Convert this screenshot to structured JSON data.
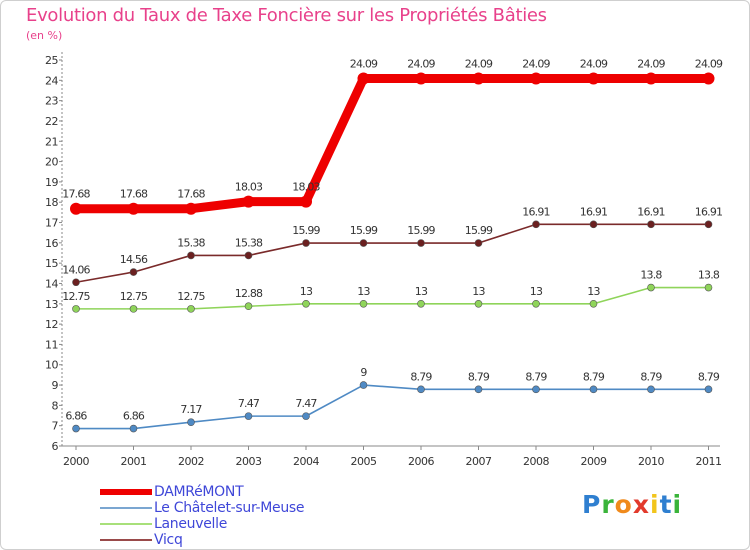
{
  "header": {
    "title": "Evolution du Taux de Taxe Foncière sur les Propriétés Bâties",
    "unit": "(en %)"
  },
  "chart_data": {
    "type": "line",
    "title": "Evolution du Taux de Taxe Foncière sur les Propriétés Bâties",
    "ylabel": "(en %)",
    "xlabel": "",
    "ylim": [
      6,
      25
    ],
    "yticks": [
      6,
      7,
      8,
      9,
      10,
      11,
      12,
      13,
      14,
      15,
      16,
      17,
      18,
      19,
      20,
      21,
      22,
      23,
      24,
      25
    ],
    "grid": "none",
    "legend_position": "bottom-left",
    "categories": [
      "2000",
      "2001",
      "2002",
      "2003",
      "2004",
      "2005",
      "2006",
      "2007",
      "2008",
      "2009",
      "2010",
      "2011"
    ],
    "series": [
      {
        "name": "DAMRéMONT",
        "color": "#ee0000",
        "values": [
          17.68,
          17.68,
          17.68,
          18.03,
          18.03,
          24.09,
          24.09,
          24.09,
          24.09,
          24.09,
          24.09,
          24.09
        ],
        "labels": [
          "17.68",
          "17.68",
          "17.68",
          "18.03",
          "18.03",
          "24.09",
          "24.09",
          "24.09",
          "24.09",
          "24.09",
          "24.09",
          "24.09"
        ]
      },
      {
        "name": "Le Châtelet-sur-Meuse",
        "color": "#4f8ac4",
        "values": [
          6.86,
          6.86,
          7.17,
          7.47,
          7.47,
          9,
          8.79,
          8.79,
          8.79,
          8.79,
          8.79,
          8.79
        ],
        "labels": [
          "6.86",
          "6.86",
          "7.17",
          "7.47",
          "7.47",
          "9",
          "8.79",
          "8.79",
          "8.79",
          "8.79",
          "8.79",
          "8.79"
        ]
      },
      {
        "name": "Laneuvelle",
        "color": "#8fd45a",
        "values": [
          12.75,
          12.75,
          12.75,
          12.88,
          13,
          13,
          13,
          13,
          13,
          13,
          13.8,
          13.8
        ],
        "labels": [
          "12.75",
          "12.75",
          "12.75",
          "12.88",
          "13",
          "13",
          "13",
          "13",
          "13",
          "13",
          "13.8",
          "13.8"
        ]
      },
      {
        "name": "Vicq",
        "color": "#7a2a2a",
        "values": [
          14.06,
          14.56,
          15.38,
          15.38,
          15.99,
          15.99,
          15.99,
          15.99,
          16.91,
          16.91,
          16.91,
          16.91
        ],
        "labels": [
          "14.06",
          "14.56",
          "15.38",
          "15.38",
          "15.99",
          "15.99",
          "15.99",
          "15.99",
          "16.91",
          "16.91",
          "16.91",
          "16.91"
        ]
      }
    ]
  },
  "legend": {
    "items": [
      {
        "label": "DAMRéMONT",
        "color": "#ee0000"
      },
      {
        "label": "Le Châtelet-sur-Meuse",
        "color": "#7ba6d1"
      },
      {
        "label": "Laneuvelle",
        "color": "#a8e07a"
      },
      {
        "label": "Vicq",
        "color": "#9a4a4a"
      }
    ]
  },
  "logo": {
    "letters": [
      "P",
      "r",
      "o",
      "x",
      "i",
      "t",
      "i"
    ],
    "colors": [
      "#2f7fd0",
      "#3ab43a",
      "#f08a1c",
      "#e23a2c",
      "#f2c51c",
      "#2f7fd0",
      "#3ab43a"
    ]
  }
}
